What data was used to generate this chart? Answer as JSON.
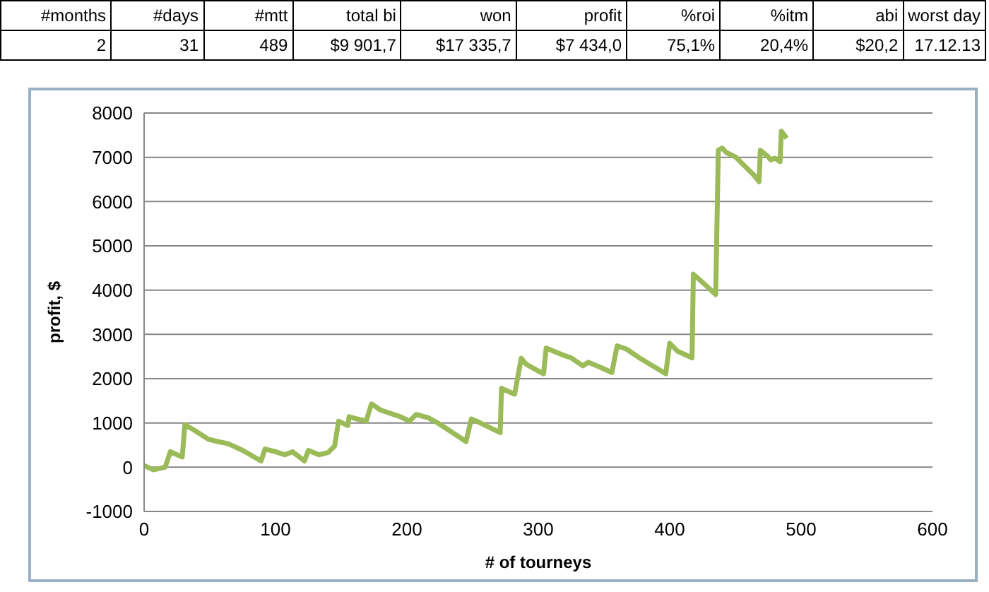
{
  "chart_data": {
    "type": "line",
    "xlabel": "# of tourneys",
    "ylabel": "profit, $",
    "annotations": [
      "#months",
      "#days",
      "#mtt",
      "total bi",
      "won",
      "profit",
      "%roi",
      "%itm",
      "abi",
      "worst day",
      "2",
      "31",
      "489",
      "$9 901,7",
      "$17 335,7",
      "$7 434,0",
      "75,1%",
      "20,4%",
      "$20,2",
      "17.12.13"
    ],
    "series": [
      {
        "color": "#9bbb59",
        "x": [
          0,
          7,
          16,
          20,
          29,
          31,
          38,
          49,
          56,
          64,
          75,
          89,
          92,
          100,
          107,
          113,
          122,
          125,
          133,
          140,
          145,
          148,
          155,
          156,
          162,
          169,
          173,
          180,
          195,
          202,
          207,
          216,
          224,
          245,
          249,
          253,
          271,
          272,
          282,
          287,
          291,
          304,
          306,
          320,
          325,
          334,
          338,
          347,
          356,
          360,
          367,
          378,
          397,
          400,
          406,
          417,
          418,
          426,
          435,
          437,
          440,
          443,
          450,
          464,
          468,
          469,
          475,
          477,
          480,
          484,
          485,
          489
        ],
        "values": [
          40,
          -60,
          0,
          350,
          230,
          960,
          840,
          630,
          580,
          530,
          380,
          140,
          410,
          350,
          280,
          350,
          140,
          380,
          280,
          330,
          480,
          1040,
          940,
          1140,
          1090,
          1040,
          1430,
          1290,
          1140,
          1040,
          1190,
          1120,
          990,
          580,
          1090,
          1040,
          780,
          1780,
          1650,
          2460,
          2320,
          2110,
          2690,
          2520,
          2470,
          2290,
          2370,
          2260,
          2140,
          2740,
          2670,
          2450,
          2110,
          2800,
          2620,
          2470,
          4360,
          4150,
          3900,
          7160,
          7210,
          7110,
          7010,
          6600,
          6450,
          7160,
          7010,
          6940,
          6980,
          6900,
          7590,
          7430
        ]
      }
    ],
    "xlim": [
      0,
      600
    ],
    "xticks": [
      0,
      100,
      200,
      300,
      400,
      500,
      600
    ],
    "ylim": [
      -1000,
      8000
    ],
    "yticks": [
      -1000,
      0,
      1000,
      2000,
      3000,
      4000,
      5000,
      6000,
      7000,
      8000
    ],
    "grid": "y",
    "legend": false,
    "marker": "none",
    "line_style": "solid"
  }
}
